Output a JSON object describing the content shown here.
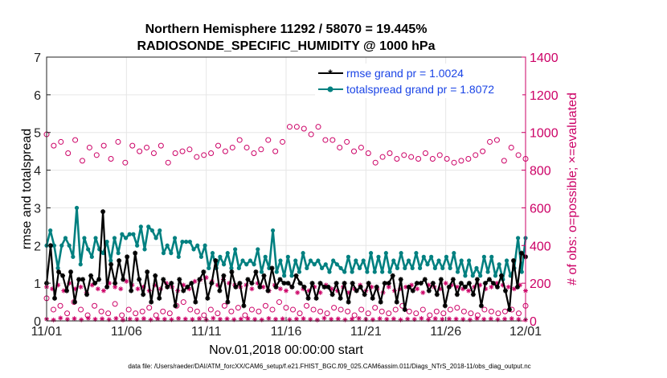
{
  "chart_data": {
    "type": "line",
    "title_lines": [
      "Northern Hemisphere 11292 / 58070 = 19.445%",
      "RADIOSONDE_SPECIFIC_HUMIDITY @ 1000 hPa"
    ],
    "xlabel": "Nov.01,2018 00:00:00 start",
    "ylabel_left": "rmse and totalspread",
    "ylabel_right": "# of obs: o=possible; ×=evaluated",
    "footer": "data file: /Users/raeder/DAI/ATM_forcXX/CAM6_setup/f.e21.FHIST_BGC.f09_025.CAM6assim.011/Diags_NTrS_2018-11/obs_diag_output.nc",
    "x_ticks": [
      {
        "day": 0,
        "label": "11/01"
      },
      {
        "day": 5,
        "label": "11/06"
      },
      {
        "day": 10,
        "label": "11/11"
      },
      {
        "day": 15,
        "label": "11/16"
      },
      {
        "day": 20,
        "label": "11/21"
      },
      {
        "day": 25,
        "label": "11/26"
      },
      {
        "day": 30,
        "label": "12/01"
      }
    ],
    "xlim": [
      0,
      30
    ],
    "ylim_left": [
      0,
      7
    ],
    "ylim_right": [
      0,
      1400
    ],
    "y_ticks_left": [
      0,
      1,
      2,
      3,
      4,
      5,
      6,
      7
    ],
    "y_ticks_right": [
      0,
      200,
      400,
      600,
      800,
      1000,
      1200,
      1400
    ],
    "legend": [
      {
        "label": "rmse grand pr = 1.0024",
        "color": "#000000",
        "marker": "star"
      },
      {
        "label": "totalspread grand pr = 1.8072",
        "color": "#008080",
        "marker": "circle"
      }
    ],
    "colors": {
      "rmse": "#000000",
      "spread": "#008080",
      "obs": "#cc0066",
      "legend_text": "#1a44e6"
    },
    "series": [
      {
        "name": "rmse",
        "values": [
          1.0,
          2.0,
          0.6,
          1.3,
          1.2,
          0.8,
          1.3,
          0.5,
          1.1,
          1.1,
          0.7,
          1.2,
          1.0,
          1.1,
          2.9,
          0.9,
          1.5,
          1.0,
          1.6,
          1.1,
          1.7,
          0.8,
          1.8,
          1.1,
          0.7,
          1.3,
          0.5,
          1.2,
          0.6,
          1.1,
          0.9,
          1.0,
          0.4,
          1.1,
          0.8,
          0.9,
          1.0,
          0.5,
          1.1,
          1.3,
          0.6,
          1.0,
          1.6,
          0.8,
          1.2,
          0.5,
          1.3,
          0.9,
          1.0,
          0.4,
          1.1,
          1.0,
          1.3,
          0.9,
          1.2,
          0.8,
          1.4,
          0.9,
          1.1,
          1.0,
          1.0,
          0.9,
          1.2,
          1.0,
          0.9,
          0.6,
          1.0,
          0.6,
          1.0,
          0.9,
          0.9,
          0.7,
          1.0,
          0.6,
          1.0,
          0.5,
          1.0,
          0.8,
          0.9,
          0.7,
          1.0,
          0.6,
          0.9,
          0.5,
          1.0,
          1.0,
          1.2,
          0.5,
          1.1,
          0.3,
          0.9,
          0.8,
          1.0,
          1.0,
          1.1,
          0.8,
          1.0,
          0.7,
          1.1,
          0.4,
          0.9,
          1.1,
          0.7,
          1.0,
          0.9,
          1.0,
          0.7,
          1.1,
          0.4,
          1.0,
          1.1,
          1.0,
          0.9,
          1.2,
          0.8,
          0.3,
          1.6,
          0.9,
          1.8,
          1.7
        ]
      },
      {
        "name": "totalspread",
        "values": [
          2.0,
          2.4,
          2.0,
          1.4,
          2.0,
          2.2,
          2.0,
          1.7,
          3.0,
          1.5,
          2.2,
          1.9,
          1.7,
          2.2,
          1.9,
          1.8,
          2.1,
          1.6,
          2.2,
          1.8,
          2.3,
          2.2,
          2.3,
          2.3,
          2.0,
          2.5,
          1.9,
          2.5,
          2.4,
          2.2,
          2.4,
          1.8,
          2.0,
          1.8,
          2.2,
          1.7,
          2.1,
          2.1,
          2.1,
          1.9,
          2.0,
          1.7,
          2.0,
          1.4,
          1.8,
          1.4,
          1.7,
          1.5,
          1.8,
          1.4,
          1.9,
          1.4,
          1.6,
          1.5,
          1.6,
          1.5,
          1.9,
          1.3,
          1.7,
          1.4,
          2.4,
          1.3,
          1.6,
          1.2,
          1.7,
          1.2,
          1.6,
          1.3,
          1.8,
          1.4,
          1.6,
          1.5,
          1.6,
          1.4,
          1.5,
          1.3,
          1.6,
          1.5,
          1.4,
          1.3,
          1.7,
          1.3,
          1.6,
          1.4,
          1.6,
          1.3,
          1.8,
          1.3,
          1.7,
          1.3,
          1.8,
          1.3,
          1.6,
          1.4,
          1.8,
          1.4,
          1.6,
          1.4,
          1.8,
          1.4,
          1.7,
          1.5,
          1.7,
          1.4,
          1.6,
          1.4,
          1.7,
          1.4,
          1.8,
          1.3,
          1.6,
          1.2,
          1.6,
          1.2,
          1.4,
          1.2,
          1.7,
          1.3,
          1.7,
          1.2,
          1.5,
          1.1,
          1.6,
          1.2,
          1.4,
          2.2,
          1.3,
          2.2
        ]
      },
      {
        "name": "obs_possible",
        "values": [
          990,
          930,
          950,
          890,
          960,
          850,
          920,
          880,
          930,
          860,
          950,
          840,
          930,
          900,
          920,
          890,
          930,
          840,
          890,
          900,
          910,
          870,
          880,
          890,
          930,
          900,
          920,
          960,
          920,
          890,
          910,
          960,
          900,
          950,
          1030,
          1030,
          1020,
          990,
          1030,
          960,
          960,
          920,
          950,
          900,
          920,
          890,
          840,
          870,
          890,
          860,
          880,
          870,
          860,
          890,
          860,
          880,
          860,
          840,
          850,
          860,
          880,
          900,
          950,
          960,
          850,
          920,
          880,
          860
        ]
      },
      {
        "name": "obs_evaluated_upper",
        "values": [
          180,
          170,
          190,
          160,
          200,
          170,
          180,
          150,
          190,
          170,
          160,
          200,
          180,
          170,
          210,
          190,
          170,
          180,
          160,
          190,
          170,
          200,
          180,
          160,
          190,
          170,
          210,
          220,
          230,
          210,
          190,
          220,
          200,
          190,
          180,
          190,
          170,
          200,
          180,
          160,
          190,
          170,
          160,
          180,
          150,
          170,
          160,
          180,
          150,
          190,
          170,
          160,
          180,
          150,
          170,
          190,
          160,
          180,
          170,
          150,
          180,
          160,
          170,
          180,
          190,
          170,
          150,
          190,
          180,
          170,
          200,
          190,
          180,
          170,
          160,
          180,
          190,
          170,
          180,
          200,
          190,
          180,
          170,
          190,
          160
        ]
      },
      {
        "name": "obs_evaluated_lower",
        "values": [
          10,
          5,
          15,
          8,
          12,
          6,
          14,
          9,
          11,
          7,
          13,
          5,
          10,
          8,
          12,
          6,
          11,
          9,
          7,
          13,
          10,
          8,
          12,
          6,
          14,
          9,
          11,
          7,
          10,
          12,
          8,
          6,
          13,
          9,
          11,
          7,
          10,
          12,
          8,
          5,
          14,
          9,
          11,
          6,
          10,
          13,
          8,
          7,
          12,
          9,
          11,
          6,
          10,
          8,
          13,
          7,
          12,
          9,
          11,
          10,
          8,
          6,
          13,
          9,
          11,
          7,
          10,
          12,
          8,
          6
        ]
      },
      {
        "name": "obs_possible_lower",
        "values": [
          120,
          60,
          80,
          40,
          100,
          60,
          30,
          80,
          50,
          40,
          90,
          30,
          60,
          40,
          50,
          70,
          30,
          50,
          40,
          80,
          100,
          60,
          50,
          30,
          60,
          40,
          80,
          50,
          70,
          30,
          60,
          50,
          80,
          60,
          100,
          70,
          60,
          40,
          80,
          60,
          50,
          40,
          70,
          60,
          50,
          30,
          60,
          40,
          70,
          50,
          40,
          60,
          80,
          50,
          40,
          60,
          30,
          50,
          40,
          60,
          70,
          50,
          40,
          30,
          60,
          50,
          40,
          50,
          60,
          40,
          80
        ]
      }
    ]
  }
}
